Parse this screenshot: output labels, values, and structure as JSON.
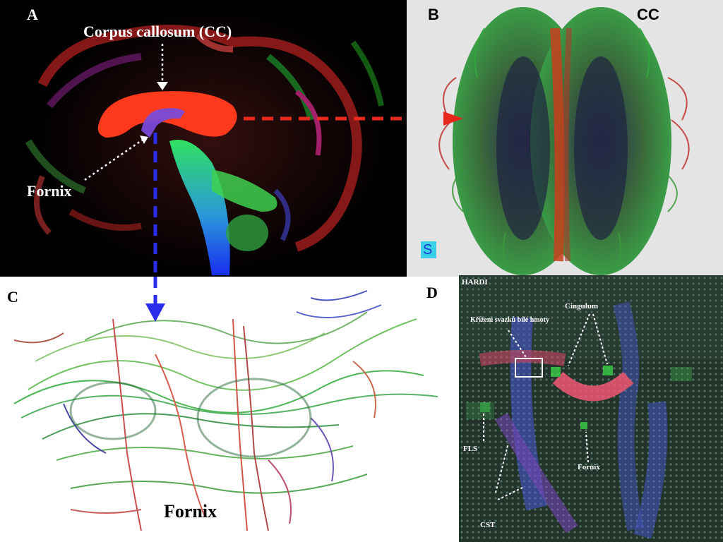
{
  "panelA": {
    "letter": "A",
    "cc_label": "Corpus callosum (CC)",
    "fornix_label": "Fornix"
  },
  "panelB": {
    "letter": "B",
    "cc_label": "CC",
    "orientation_label": "S"
  },
  "panelC": {
    "letter": "C",
    "fornix_label": "Fornix"
  },
  "panelD": {
    "letter": "D",
    "hardi_label": "HARDI",
    "crossing_label": "Kříženi svazků bílé hmoty",
    "cingulum_label": "Cingulum",
    "fls_label": "FLS",
    "fornix_label": "Fornix",
    "cst_label": "CST"
  },
  "colors": {
    "red_arrow": "#e8281c",
    "blue_arrow": "#2a2ee8",
    "cc_red": "#ff3a1c",
    "tract_green": "#2faa3a",
    "tract_blue": "#2a4fd8"
  }
}
